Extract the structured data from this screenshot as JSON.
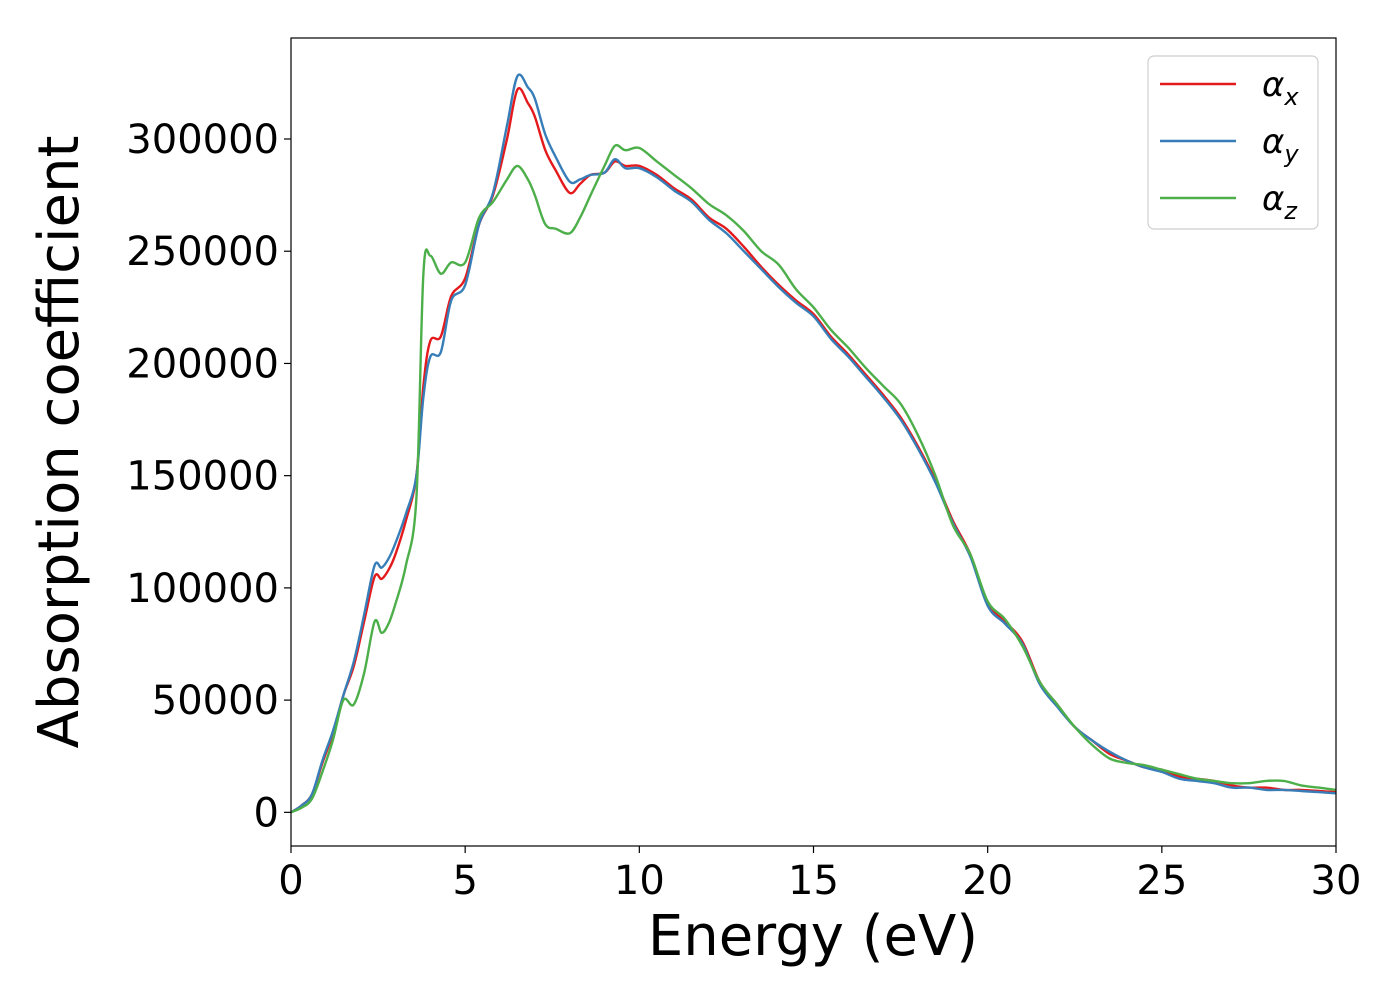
{
  "chart_data": {
    "type": "line",
    "title": "",
    "xlabel": "Energy (eV)",
    "ylabel": "Absorption coefficient",
    "xlim": [
      0,
      30
    ],
    "ylim": [
      -15000,
      345000
    ],
    "xticks": [
      0,
      5,
      10,
      15,
      20,
      25,
      30
    ],
    "xtick_labels": [
      "0",
      "5",
      "10",
      "15",
      "20",
      "25",
      "30"
    ],
    "yticks": [
      0,
      50000,
      100000,
      150000,
      200000,
      250000,
      300000
    ],
    "ytick_labels": [
      "0",
      "50000",
      "100000",
      "150000",
      "200000",
      "250000",
      "300000"
    ],
    "grid": false,
    "legend_position": "top-right",
    "series": [
      {
        "name": "α_x",
        "symbol": "α",
        "subscript": "x",
        "color": "#e41a1c",
        "x": [
          0,
          0.3,
          0.6,
          0.9,
          1.2,
          1.5,
          1.8,
          2.1,
          2.4,
          2.6,
          2.8,
          3.0,
          3.3,
          3.6,
          3.8,
          4.0,
          4.3,
          4.6,
          5.0,
          5.4,
          5.8,
          6.2,
          6.5,
          6.8,
          7.0,
          7.3,
          7.6,
          8.0,
          8.3,
          8.6,
          9.0,
          9.3,
          9.6,
          10.0,
          10.5,
          11.0,
          11.5,
          12.0,
          12.5,
          13.0,
          13.5,
          14.0,
          14.5,
          15.0,
          15.5,
          16.0,
          16.5,
          17.0,
          17.5,
          18.0,
          18.5,
          19.0,
          19.5,
          20.0,
          20.5,
          21.0,
          21.5,
          22.0,
          22.5,
          23.0,
          23.5,
          24.0,
          24.5,
          25.0,
          25.5,
          26.0,
          26.5,
          27.0,
          27.5,
          28.0,
          28.5,
          29.0,
          29.5,
          30.0
        ],
        "values": [
          0,
          3000,
          8000,
          22000,
          35000,
          52000,
          65000,
          85000,
          105000,
          104000,
          108000,
          115000,
          130000,
          150000,
          190000,
          210000,
          212000,
          230000,
          238000,
          262000,
          275000,
          300000,
          322000,
          316000,
          310000,
          295000,
          286000,
          276000,
          280000,
          284000,
          285000,
          290000,
          288000,
          288000,
          284000,
          278000,
          273000,
          265000,
          260000,
          252000,
          243000,
          235000,
          228000,
          222000,
          212000,
          204000,
          195000,
          186000,
          176000,
          163000,
          148000,
          130000,
          115000,
          93000,
          85000,
          76000,
          58000,
          48000,
          38000,
          32000,
          26000,
          23000,
          20000,
          19000,
          16000,
          15000,
          14000,
          12000,
          11000,
          11000,
          10000,
          10000,
          9500,
          9000
        ]
      },
      {
        "name": "α_y",
        "symbol": "α",
        "subscript": "y",
        "color": "#377eb8",
        "x": [
          0,
          0.3,
          0.6,
          0.9,
          1.2,
          1.5,
          1.8,
          2.1,
          2.4,
          2.6,
          2.8,
          3.0,
          3.3,
          3.6,
          3.8,
          4.0,
          4.3,
          4.6,
          5.0,
          5.4,
          5.8,
          6.2,
          6.5,
          6.8,
          7.0,
          7.3,
          7.6,
          8.0,
          8.3,
          8.6,
          9.0,
          9.3,
          9.6,
          10.0,
          10.5,
          11.0,
          11.5,
          12.0,
          12.5,
          13.0,
          13.5,
          14.0,
          14.5,
          15.0,
          15.5,
          16.0,
          16.5,
          17.0,
          17.5,
          18.0,
          18.5,
          19.0,
          19.5,
          20.0,
          20.5,
          21.0,
          21.5,
          22.0,
          22.5,
          23.0,
          23.5,
          24.0,
          24.5,
          25.0,
          25.5,
          26.0,
          26.5,
          27.0,
          27.5,
          28.0,
          28.5,
          29.0,
          29.5,
          30.0
        ],
        "values": [
          0,
          3000,
          8000,
          23000,
          36000,
          52000,
          67000,
          88000,
          110000,
          109000,
          113000,
          120000,
          133000,
          150000,
          185000,
          203000,
          205000,
          228000,
          235000,
          262000,
          276000,
          306000,
          328000,
          323000,
          318000,
          302000,
          292000,
          281000,
          282000,
          284000,
          285000,
          291000,
          287000,
          287000,
          283000,
          277000,
          272000,
          264000,
          258000,
          250000,
          242000,
          234000,
          227000,
          221000,
          211000,
          203000,
          194000,
          185000,
          175000,
          162000,
          147000,
          129000,
          114000,
          92000,
          84000,
          75000,
          57000,
          47000,
          38000,
          32000,
          27000,
          23000,
          20000,
          18000,
          15000,
          14000,
          13000,
          11000,
          11000,
          10000,
          10000,
          9500,
          9000,
          8500
        ]
      },
      {
        "name": "α_z",
        "symbol": "α",
        "subscript": "z",
        "color": "#4daf4a",
        "x": [
          0,
          0.3,
          0.6,
          0.9,
          1.2,
          1.5,
          1.8,
          2.1,
          2.4,
          2.6,
          2.8,
          3.0,
          3.3,
          3.6,
          3.8,
          4.0,
          4.3,
          4.6,
          5.0,
          5.4,
          5.8,
          6.2,
          6.5,
          6.8,
          7.0,
          7.3,
          7.6,
          8.0,
          8.3,
          8.6,
          9.0,
          9.3,
          9.6,
          10.0,
          10.5,
          11.0,
          11.5,
          12.0,
          12.5,
          13.0,
          13.5,
          14.0,
          14.5,
          15.0,
          15.5,
          16.0,
          16.5,
          17.0,
          17.5,
          18.0,
          18.5,
          19.0,
          19.5,
          20.0,
          20.5,
          21.0,
          21.5,
          22.0,
          22.5,
          23.0,
          23.5,
          24.0,
          24.5,
          25.0,
          25.5,
          26.0,
          26.5,
          27.0,
          27.5,
          28.0,
          28.5,
          29.0,
          29.5,
          30.0
        ],
        "values": [
          0,
          2000,
          6000,
          18000,
          32000,
          50000,
          48000,
          62000,
          85000,
          80000,
          84000,
          93000,
          110000,
          140000,
          240000,
          248000,
          240000,
          245000,
          245000,
          265000,
          272000,
          282000,
          288000,
          282000,
          275000,
          262000,
          260000,
          258000,
          265000,
          275000,
          288000,
          297000,
          295000,
          296000,
          290000,
          284000,
          278000,
          271000,
          266000,
          259000,
          250000,
          244000,
          233000,
          225000,
          215000,
          207000,
          198000,
          190000,
          182000,
          168000,
          150000,
          128000,
          115000,
          94000,
          86000,
          74000,
          58000,
          48000,
          38000,
          30000,
          24000,
          22000,
          21000,
          19000,
          17000,
          15000,
          14000,
          13000,
          13000,
          14000,
          14000,
          12000,
          11000,
          10000
        ]
      }
    ]
  }
}
